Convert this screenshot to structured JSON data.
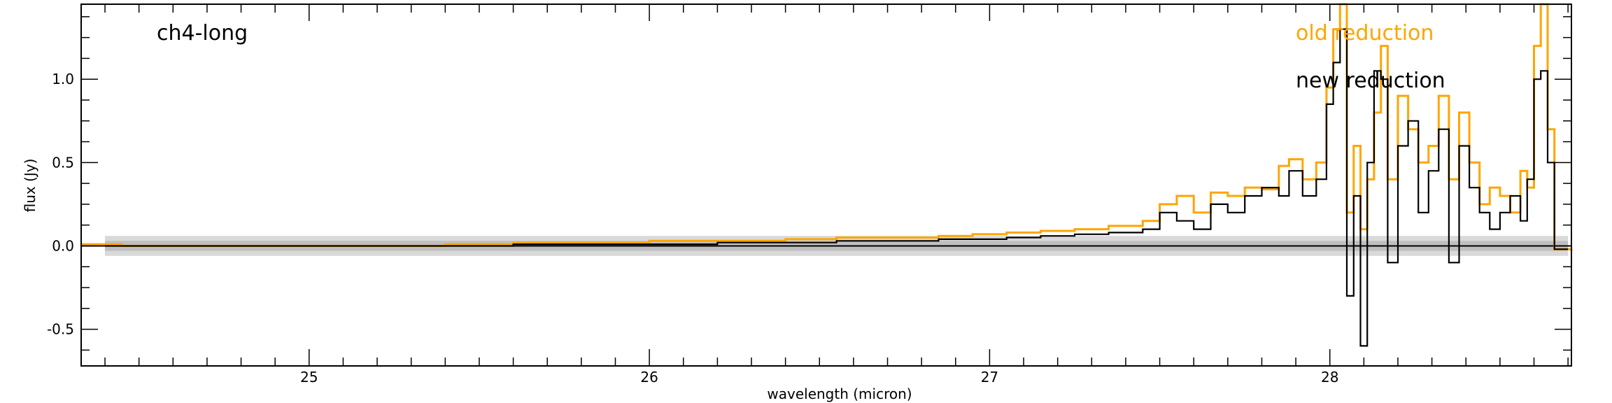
{
  "chart_data": {
    "type": "line",
    "title": "",
    "annotation": "ch4-long",
    "xlabel": "wavelength (micron)",
    "ylabel": "flux (Jy)",
    "xlim": [
      24.33,
      28.71
    ],
    "ylim": [
      -0.72,
      1.45
    ],
    "x_major_ticks": [
      25,
      26,
      27,
      28
    ],
    "x_tick_labels": [
      "25",
      "26",
      "27",
      "28"
    ],
    "y_major_ticks": [
      -0.5,
      0.0,
      0.5,
      1.0
    ],
    "y_tick_labels": [
      "-0.5",
      "0.0",
      "0.5",
      "1.0"
    ],
    "grid": false,
    "legend_placement": "top-right",
    "shaded_band": {
      "x": [
        24.4,
        28.7
      ],
      "y_outer": [
        -0.06,
        0.06
      ],
      "y_inner": [
        -0.03,
        0.03
      ]
    },
    "zero_line": 0.0,
    "series": [
      {
        "name": "old reduction",
        "color": "#FFA500",
        "step": true,
        "x": [
          24.33,
          24.45,
          24.6,
          24.8,
          25.0,
          25.2,
          25.4,
          25.6,
          25.8,
          26.0,
          26.2,
          26.4,
          26.55,
          26.7,
          26.85,
          26.95,
          27.05,
          27.15,
          27.25,
          27.35,
          27.45,
          27.5,
          27.55,
          27.6,
          27.65,
          27.7,
          27.75,
          27.8,
          27.85,
          27.88,
          27.92,
          27.96,
          27.99,
          28.01,
          28.03,
          28.05,
          28.07,
          28.09,
          28.11,
          28.13,
          28.15,
          28.17,
          28.2,
          28.23,
          28.26,
          28.29,
          28.32,
          28.35,
          28.38,
          28.41,
          28.44,
          28.47,
          28.5,
          28.53,
          28.56,
          28.58,
          28.6,
          28.62,
          28.64,
          28.66,
          28.71
        ],
        "y": [
          0.01,
          0.0,
          0.0,
          0.0,
          0.0,
          0.0,
          0.01,
          0.02,
          0.02,
          0.03,
          0.03,
          0.04,
          0.05,
          0.05,
          0.06,
          0.07,
          0.08,
          0.09,
          0.1,
          0.12,
          0.15,
          0.25,
          0.3,
          0.2,
          0.32,
          0.3,
          0.35,
          0.34,
          0.48,
          0.52,
          0.4,
          0.5,
          0.95,
          1.3,
          1.45,
          0.2,
          0.6,
          0.1,
          0.4,
          0.8,
          1.2,
          0.4,
          0.9,
          0.7,
          0.5,
          0.6,
          0.9,
          0.4,
          0.8,
          0.5,
          0.25,
          0.35,
          0.3,
          0.2,
          0.45,
          0.35,
          1.2,
          1.45,
          0.7,
          -0.02,
          -0.03
        ]
      },
      {
        "name": "new reduction",
        "color": "#000000",
        "step": true,
        "x": [
          24.4,
          24.6,
          24.8,
          25.0,
          25.2,
          25.4,
          25.6,
          25.8,
          26.0,
          26.2,
          26.4,
          26.55,
          26.7,
          26.85,
          26.95,
          27.05,
          27.15,
          27.25,
          27.35,
          27.45,
          27.5,
          27.55,
          27.6,
          27.65,
          27.7,
          27.75,
          27.8,
          27.85,
          27.88,
          27.92,
          27.96,
          27.99,
          28.01,
          28.03,
          28.05,
          28.07,
          28.09,
          28.11,
          28.13,
          28.15,
          28.17,
          28.2,
          28.23,
          28.26,
          28.29,
          28.32,
          28.35,
          28.38,
          28.41,
          28.44,
          28.47,
          28.5,
          28.53,
          28.56,
          28.58,
          28.6,
          28.62,
          28.64,
          28.66,
          28.7
        ],
        "y": [
          0.0,
          0.0,
          0.0,
          0.0,
          0.0,
          0.0,
          0.01,
          0.01,
          0.01,
          0.02,
          0.02,
          0.03,
          0.03,
          0.04,
          0.04,
          0.05,
          0.06,
          0.07,
          0.08,
          0.1,
          0.2,
          0.15,
          0.1,
          0.25,
          0.2,
          0.3,
          0.35,
          0.3,
          0.45,
          0.3,
          0.4,
          0.85,
          1.1,
          1.3,
          -0.3,
          0.3,
          -0.6,
          0.5,
          1.05,
          1.0,
          -0.1,
          0.6,
          0.75,
          0.2,
          0.45,
          0.7,
          -0.1,
          0.6,
          0.35,
          0.2,
          0.1,
          0.2,
          0.3,
          0.15,
          0.4,
          1.0,
          1.05,
          0.5,
          -0.02,
          -0.02
        ]
      }
    ],
    "legend_labels": [
      "old reduction",
      "new reduction"
    ]
  }
}
